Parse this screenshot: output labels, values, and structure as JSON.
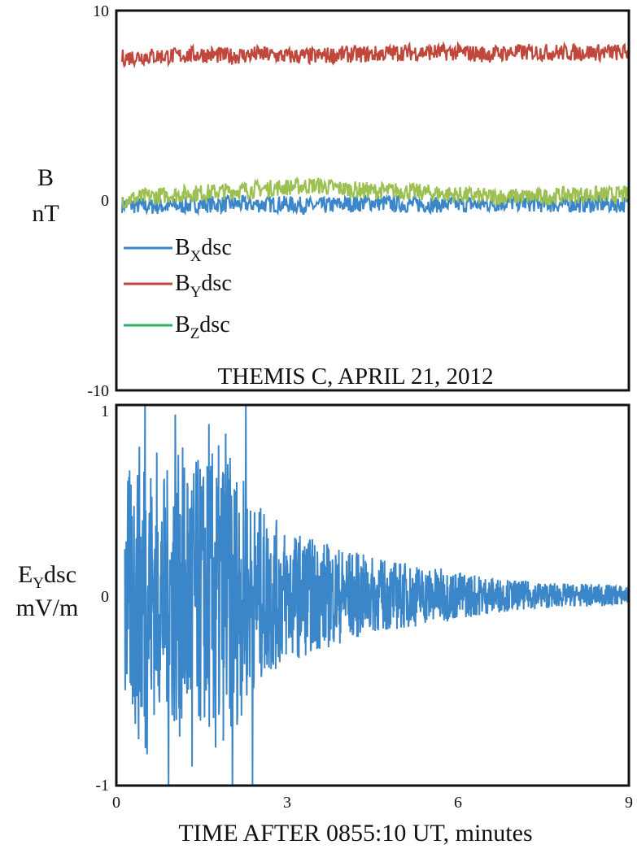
{
  "colors": {
    "bx": "#3a86c8",
    "by": "#c0473c",
    "bz": "#9cc052",
    "ey": "#3a86c8",
    "bz_legend": "#2bb36a"
  },
  "chart_data": [
    {
      "type": "line",
      "title": "THEMIS C, APRIL 21, 2012",
      "ylabel": [
        "B",
        "nT"
      ],
      "ylim": [
        -10,
        10
      ],
      "xlim": [
        0,
        9
      ],
      "yticks": [
        "10",
        "0",
        "-10"
      ],
      "legend_position": "left",
      "series": [
        {
          "name": "BXdsc",
          "base": "B",
          "sub": "X",
          "rest": "dsc",
          "color_key": "bx",
          "x": [
            0.05,
            0.5,
            1,
            1.5,
            2,
            2.5,
            3,
            3.5,
            4,
            4.5,
            5,
            5.5,
            6,
            6.5,
            7,
            7.5,
            8,
            8.5,
            9
          ],
          "values": [
            -0.2,
            -0.3,
            -0.3,
            -0.2,
            -0.2,
            -0.2,
            -0.2,
            -0.3,
            -0.2,
            -0.1,
            -0.2,
            -0.2,
            -0.2,
            -0.2,
            -0.1,
            -0.2,
            -0.2,
            -0.2,
            -0.2
          ]
        },
        {
          "name": "BYdsc",
          "base": "B",
          "sub": "Y",
          "rest": "dsc",
          "color_key": "by",
          "x": [
            0.05,
            0.5,
            1,
            1.5,
            2,
            2.5,
            3,
            3.5,
            4,
            4.5,
            5,
            5.5,
            6,
            6.5,
            7,
            7.5,
            8,
            8.5,
            9
          ],
          "values": [
            7.5,
            7.6,
            7.6,
            7.7,
            7.6,
            7.7,
            7.6,
            7.6,
            7.7,
            7.7,
            7.8,
            7.8,
            7.8,
            7.7,
            7.8,
            7.8,
            7.8,
            7.8,
            7.8
          ]
        },
        {
          "name": "BZdsc",
          "base": "B",
          "sub": "Z",
          "rest": "dsc",
          "color_key": "bz",
          "x": [
            0.05,
            0.5,
            1,
            1.5,
            2,
            2.5,
            3,
            3.5,
            4,
            4.5,
            5,
            5.5,
            6,
            6.5,
            7,
            7.5,
            8,
            8.5,
            9
          ],
          "values": [
            0.0,
            0.2,
            0.3,
            0.4,
            0.5,
            0.6,
            0.7,
            0.8,
            0.6,
            0.5,
            0.5,
            0.4,
            0.3,
            0.2,
            0.2,
            0.2,
            0.3,
            0.3,
            0.3
          ]
        }
      ]
    },
    {
      "type": "line",
      "ylabel": [
        "EYdsc",
        "mV/m"
      ],
      "ylabel_parts": {
        "base": "E",
        "sub": "Y",
        "rest": "dsc"
      },
      "xlabel": "TIME AFTER 0855:10 UT, minutes",
      "ylim": [
        -1,
        1
      ],
      "xlim": [
        0,
        9
      ],
      "yticks": [
        "1",
        "0",
        "-1"
      ],
      "xticks": [
        "0",
        "3",
        "6",
        "9"
      ],
      "series": [
        {
          "name": "EYdsc",
          "color_key": "ey",
          "x": [
            0.1,
            0.3,
            0.5,
            0.7,
            1.0,
            1.2,
            1.5,
            1.8,
            2.1,
            2.4,
            3,
            3.5,
            4,
            4.5,
            5,
            5.5,
            6,
            6.5,
            7,
            7.5,
            8,
            8.5,
            9
          ],
          "amplitude": [
            0.6,
            0.7,
            0.9,
            0.6,
            0.7,
            0.8,
            0.7,
            0.8,
            0.7,
            0.5,
            0.35,
            0.3,
            0.25,
            0.2,
            0.18,
            0.15,
            0.13,
            0.1,
            0.08,
            0.07,
            0.06,
            0.06,
            0.05
          ]
        }
      ]
    }
  ]
}
